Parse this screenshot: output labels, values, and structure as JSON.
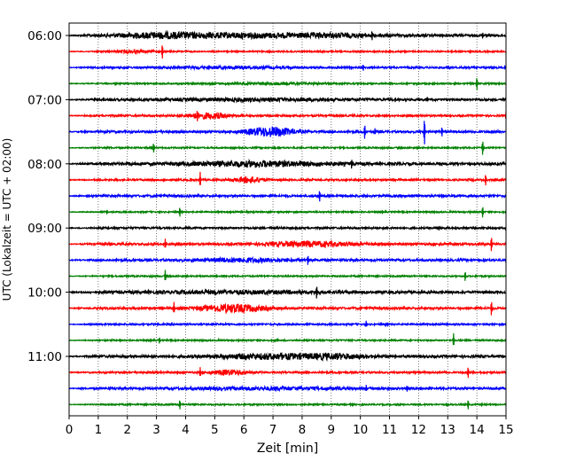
{
  "chart_data": {
    "type": "line",
    "title": "",
    "xlabel": "Zeit  [min]",
    "ylabel": "UTC (Lokalzeit = UTC + 02:00)",
    "xlim": [
      0,
      15
    ],
    "x_ticks": [
      "0",
      "1",
      "2",
      "3",
      "4",
      "5",
      "6",
      "7",
      "8",
      "9",
      "10",
      "11",
      "12",
      "13",
      "14",
      "15"
    ],
    "y_ticks": [
      {
        "row": 0,
        "label": "06:00"
      },
      {
        "row": 4,
        "label": "07:00"
      },
      {
        "row": 8,
        "label": "08:00"
      },
      {
        "row": 12,
        "label": "09:00"
      },
      {
        "row": 16,
        "label": "10:00"
      },
      {
        "row": 20,
        "label": "11:00"
      }
    ],
    "grid": {
      "vertical": true,
      "style": "dotted"
    },
    "trace_colors": [
      "#000000",
      "#ff0000",
      "#0000ff",
      "#008000"
    ],
    "trace_interval_min": 15,
    "traces": [
      {
        "start": "06:00",
        "base": 1.4,
        "bursts": [
          [
            3.2,
            1.6,
            2.5
          ],
          [
            6.0,
            2.0,
            2.0
          ],
          [
            9.0,
            1.6,
            1.6
          ]
        ],
        "spikes": [
          [
            10.4,
            6
          ],
          [
            14.2,
            4
          ]
        ]
      },
      {
        "start": "06:15",
        "base": 0.8,
        "bursts": [
          [
            2.2,
            0.6,
            1.2
          ]
        ],
        "spikes": [
          [
            3.2,
            9
          ]
        ]
      },
      {
        "start": "06:30",
        "base": 1.0,
        "bursts": [
          [
            5.5,
            2.0,
            1.0
          ]
        ],
        "spikes": [
          [
            10.1,
            4
          ]
        ]
      },
      {
        "start": "06:45",
        "base": 0.8,
        "bursts": [
          [
            7.0,
            2.0,
            0.8
          ]
        ],
        "spikes": [
          [
            14.0,
            8
          ]
        ]
      },
      {
        "start": "07:00",
        "base": 1.2,
        "bursts": [
          [
            6.5,
            3.0,
            1.2
          ]
        ],
        "spikes": [
          [
            11.2,
            3
          ],
          [
            12.3,
            3
          ]
        ]
      },
      {
        "start": "07:15",
        "base": 1.0,
        "bursts": [
          [
            4.8,
            0.7,
            3.0
          ]
        ],
        "spikes": [
          [
            4.4,
            7
          ],
          [
            15.0,
            5
          ]
        ]
      },
      {
        "start": "07:30",
        "base": 1.2,
        "bursts": [
          [
            6.9,
            0.8,
            5.0
          ]
        ],
        "spikes": [
          [
            10.15,
            9
          ],
          [
            10.5,
            4
          ],
          [
            12.2,
            16
          ],
          [
            12.8,
            6
          ]
        ]
      },
      {
        "start": "07:45",
        "base": 0.8,
        "bursts": [],
        "spikes": [
          [
            2.9,
            6
          ],
          [
            14.2,
            9
          ]
        ]
      },
      {
        "start": "08:00",
        "base": 1.4,
        "bursts": [
          [
            6.5,
            2.5,
            2.5
          ]
        ],
        "spikes": [
          [
            9.7,
            6
          ],
          [
            11.0,
            3
          ]
        ]
      },
      {
        "start": "08:15",
        "base": 1.0,
        "bursts": [
          [
            6.2,
            0.5,
            3.0
          ]
        ],
        "spikes": [
          [
            4.5,
            9
          ],
          [
            14.3,
            7
          ]
        ]
      },
      {
        "start": "08:30",
        "base": 1.2,
        "bursts": [],
        "spikes": [
          [
            3.0,
            3
          ],
          [
            8.6,
            7
          ],
          [
            12.8,
            3
          ]
        ]
      },
      {
        "start": "08:45",
        "base": 0.8,
        "bursts": [],
        "spikes": [
          [
            1.3,
            3
          ],
          [
            3.8,
            6
          ],
          [
            14.2,
            7
          ]
        ]
      },
      {
        "start": "09:00",
        "base": 1.0,
        "bursts": [],
        "spikes": [
          [
            12.7,
            3
          ]
        ]
      },
      {
        "start": "09:15",
        "base": 1.2,
        "bursts": [
          [
            8.3,
            1.5,
            2.5
          ]
        ],
        "spikes": [
          [
            3.3,
            6
          ],
          [
            14.5,
            9
          ]
        ]
      },
      {
        "start": "09:30",
        "base": 1.2,
        "bursts": [
          [
            6.0,
            1.5,
            1.8
          ]
        ],
        "spikes": [
          [
            8.2,
            6
          ]
        ]
      },
      {
        "start": "09:45",
        "base": 0.8,
        "bursts": [],
        "spikes": [
          [
            3.3,
            7
          ],
          [
            13.6,
            6
          ]
        ]
      },
      {
        "start": "10:00",
        "base": 1.4,
        "bursts": [
          [
            6.0,
            3.0,
            1.2
          ]
        ],
        "spikes": [
          [
            8.5,
            8
          ],
          [
            11.0,
            3
          ]
        ]
      },
      {
        "start": "10:15",
        "base": 1.2,
        "bursts": [
          [
            5.6,
            1.1,
            4.0
          ]
        ],
        "spikes": [
          [
            3.6,
            7
          ],
          [
            10.0,
            3
          ],
          [
            14.5,
            9
          ]
        ]
      },
      {
        "start": "10:30",
        "base": 0.9,
        "bursts": [],
        "spikes": [
          [
            10.2,
            4
          ]
        ]
      },
      {
        "start": "10:45",
        "base": 0.8,
        "bursts": [],
        "spikes": [
          [
            3.1,
            4
          ],
          [
            13.2,
            8
          ]
        ]
      },
      {
        "start": "11:00",
        "base": 1.4,
        "bursts": [
          [
            7.0,
            2.0,
            2.5
          ],
          [
            9.3,
            1.0,
            1.8
          ]
        ],
        "spikes": [
          [
            11.2,
            3
          ]
        ]
      },
      {
        "start": "11:15",
        "base": 1.0,
        "bursts": [
          [
            5.5,
            0.6,
            2.5
          ]
        ],
        "spikes": [
          [
            4.5,
            6
          ],
          [
            13.7,
            7
          ]
        ]
      },
      {
        "start": "11:30",
        "base": 1.2,
        "bursts": [
          [
            6.8,
            2.5,
            1.2
          ]
        ],
        "spikes": [
          [
            10.2,
            4
          ],
          [
            11.6,
            4
          ]
        ]
      },
      {
        "start": "11:45",
        "base": 0.8,
        "bursts": [],
        "spikes": [
          [
            3.8,
            6
          ],
          [
            13.7,
            6
          ]
        ]
      }
    ]
  }
}
